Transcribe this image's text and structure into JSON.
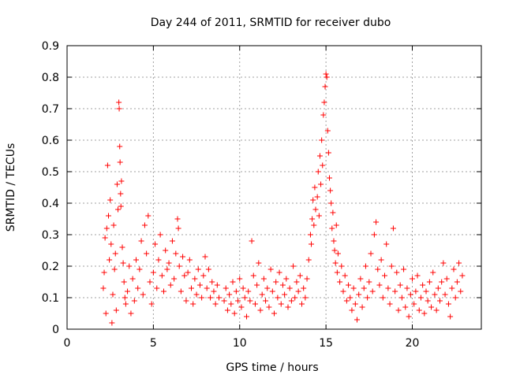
{
  "chart_data": {
    "type": "scatter",
    "title": "Day 244 of 2011, SRMTID for receiver dubo",
    "xlabel": "GPS time / hours",
    "ylabel": "SRMTID / TECUs",
    "xlim": [
      0,
      24
    ],
    "ylim": [
      0,
      0.9
    ],
    "grid": true,
    "marker": "+",
    "series_color": "#ff0000",
    "x_ticks": [
      {
        "value": 0,
        "label": "0"
      },
      {
        "value": 5,
        "label": "5"
      },
      {
        "value": 10,
        "label": "10"
      },
      {
        "value": 15,
        "label": "15"
      },
      {
        "value": 20,
        "label": "20"
      }
    ],
    "y_ticks": [
      {
        "value": 0,
        "label": "0"
      },
      {
        "value": 0.1,
        "label": "0.1"
      },
      {
        "value": 0.2,
        "label": "0.2"
      },
      {
        "value": 0.3,
        "label": "0.3"
      },
      {
        "value": 0.4,
        "label": "0.4"
      },
      {
        "value": 0.5,
        "label": "0.5"
      },
      {
        "value": 0.6,
        "label": "0.6"
      },
      {
        "value": 0.7,
        "label": "0.7"
      },
      {
        "value": 0.8,
        "label": "0.8"
      },
      {
        "value": 0.9,
        "label": "0.9"
      }
    ],
    "series": [
      {
        "name": "SRMTID",
        "points": [
          [
            2.1,
            0.13
          ],
          [
            2.15,
            0.18
          ],
          [
            2.2,
            0.29
          ],
          [
            2.25,
            0.05
          ],
          [
            2.3,
            0.32
          ],
          [
            2.35,
            0.52
          ],
          [
            2.4,
            0.36
          ],
          [
            2.45,
            0.22
          ],
          [
            2.5,
            0.41
          ],
          [
            2.55,
            0.27
          ],
          [
            2.6,
            0.02
          ],
          [
            2.65,
            0.11
          ],
          [
            2.7,
            0.33
          ],
          [
            2.75,
            0.19
          ],
          [
            2.8,
            0.24
          ],
          [
            2.85,
            0.06
          ],
          [
            2.9,
            0.46
          ],
          [
            2.95,
            0.38
          ],
          [
            3.0,
            0.72
          ],
          [
            3.02,
            0.7
          ],
          [
            3.05,
            0.58
          ],
          [
            3.07,
            0.53
          ],
          [
            3.1,
            0.43
          ],
          [
            3.12,
            0.39
          ],
          [
            3.15,
            0.47
          ],
          [
            3.2,
            0.26
          ],
          [
            3.25,
            0.21
          ],
          [
            3.3,
            0.15
          ],
          [
            3.35,
            0.1
          ],
          [
            3.4,
            0.08
          ],
          [
            3.5,
            0.12
          ],
          [
            3.6,
            0.2
          ],
          [
            3.7,
            0.05
          ],
          [
            3.8,
            0.16
          ],
          [
            3.9,
            0.09
          ],
          [
            4.0,
            0.22
          ],
          [
            4.1,
            0.13
          ],
          [
            4.2,
            0.19
          ],
          [
            4.3,
            0.28
          ],
          [
            4.4,
            0.11
          ],
          [
            4.5,
            0.33
          ],
          [
            4.6,
            0.24
          ],
          [
            4.7,
            0.36
          ],
          [
            4.8,
            0.15
          ],
          [
            4.9,
            0.08
          ],
          [
            5.0,
            0.18
          ],
          [
            5.1,
            0.27
          ],
          [
            5.2,
            0.13
          ],
          [
            5.3,
            0.22
          ],
          [
            5.4,
            0.3
          ],
          [
            5.5,
            0.17
          ],
          [
            5.6,
            0.12
          ],
          [
            5.7,
            0.25
          ],
          [
            5.8,
            0.19
          ],
          [
            5.9,
            0.21
          ],
          [
            6.0,
            0.14
          ],
          [
            6.1,
            0.28
          ],
          [
            6.2,
            0.16
          ],
          [
            6.3,
            0.24
          ],
          [
            6.4,
            0.35
          ],
          [
            6.45,
            0.32
          ],
          [
            6.5,
            0.2
          ],
          [
            6.6,
            0.12
          ],
          [
            6.7,
            0.23
          ],
          [
            6.8,
            0.17
          ],
          [
            6.9,
            0.09
          ],
          [
            7.0,
            0.18
          ],
          [
            7.1,
            0.22
          ],
          [
            7.2,
            0.13
          ],
          [
            7.3,
            0.08
          ],
          [
            7.4,
            0.16
          ],
          [
            7.5,
            0.11
          ],
          [
            7.6,
            0.19
          ],
          [
            7.7,
            0.14
          ],
          [
            7.8,
            0.1
          ],
          [
            7.9,
            0.17
          ],
          [
            8.0,
            0.23
          ],
          [
            8.1,
            0.13
          ],
          [
            8.2,
            0.19
          ],
          [
            8.3,
            0.1
          ],
          [
            8.4,
            0.15
          ],
          [
            8.5,
            0.12
          ],
          [
            8.6,
            0.08
          ],
          [
            8.7,
            0.14
          ],
          [
            8.8,
            0.1
          ],
          [
            9.1,
            0.09
          ],
          [
            9.2,
            0.13
          ],
          [
            9.3,
            0.06
          ],
          [
            9.4,
            0.11
          ],
          [
            9.5,
            0.08
          ],
          [
            9.6,
            0.15
          ],
          [
            9.7,
            0.05
          ],
          [
            9.8,
            0.12
          ],
          [
            9.9,
            0.09
          ],
          [
            10.0,
            0.16
          ],
          [
            10.1,
            0.07
          ],
          [
            10.2,
            0.13
          ],
          [
            10.3,
            0.1
          ],
          [
            10.4,
            0.04
          ],
          [
            10.5,
            0.12
          ],
          [
            10.6,
            0.09
          ],
          [
            10.7,
            0.28
          ],
          [
            10.8,
            0.17
          ],
          [
            10.9,
            0.08
          ],
          [
            11.0,
            0.14
          ],
          [
            11.1,
            0.21
          ],
          [
            11.2,
            0.06
          ],
          [
            11.3,
            0.11
          ],
          [
            11.4,
            0.16
          ],
          [
            11.5,
            0.09
          ],
          [
            11.6,
            0.13
          ],
          [
            11.7,
            0.07
          ],
          [
            11.8,
            0.19
          ],
          [
            11.9,
            0.12
          ],
          [
            12.0,
            0.05
          ],
          [
            12.1,
            0.15
          ],
          [
            12.2,
            0.1
          ],
          [
            12.3,
            0.18
          ],
          [
            12.4,
            0.08
          ],
          [
            12.5,
            0.14
          ],
          [
            12.6,
            0.11
          ],
          [
            12.7,
            0.16
          ],
          [
            12.8,
            0.07
          ],
          [
            12.9,
            0.13
          ],
          [
            13.0,
            0.09
          ],
          [
            13.1,
            0.2
          ],
          [
            13.2,
            0.1
          ],
          [
            13.3,
            0.15
          ],
          [
            13.4,
            0.12
          ],
          [
            13.5,
            0.17
          ],
          [
            13.6,
            0.08
          ],
          [
            13.7,
            0.13
          ],
          [
            13.8,
            0.1
          ],
          [
            13.9,
            0.16
          ],
          [
            14.0,
            0.22
          ],
          [
            14.1,
            0.3
          ],
          [
            14.15,
            0.27
          ],
          [
            14.2,
            0.35
          ],
          [
            14.25,
            0.41
          ],
          [
            14.3,
            0.33
          ],
          [
            14.35,
            0.45
          ],
          [
            14.4,
            0.38
          ],
          [
            14.5,
            0.42
          ],
          [
            14.55,
            0.5
          ],
          [
            14.6,
            0.36
          ],
          [
            14.65,
            0.55
          ],
          [
            14.7,
            0.46
          ],
          [
            14.75,
            0.6
          ],
          [
            14.8,
            0.52
          ],
          [
            14.85,
            0.68
          ],
          [
            14.9,
            0.72
          ],
          [
            14.95,
            0.77
          ],
          [
            15.0,
            0.81
          ],
          [
            15.05,
            0.8
          ],
          [
            15.1,
            0.63
          ],
          [
            15.15,
            0.56
          ],
          [
            15.2,
            0.48
          ],
          [
            15.25,
            0.44
          ],
          [
            15.3,
            0.4
          ],
          [
            15.35,
            0.32
          ],
          [
            15.4,
            0.37
          ],
          [
            15.45,
            0.28
          ],
          [
            15.5,
            0.25
          ],
          [
            15.55,
            0.21
          ],
          [
            15.6,
            0.33
          ],
          [
            15.65,
            0.18
          ],
          [
            15.7,
            0.24
          ],
          [
            15.8,
            0.15
          ],
          [
            15.9,
            0.2
          ],
          [
            16.0,
            0.12
          ],
          [
            16.1,
            0.17
          ],
          [
            16.2,
            0.09
          ],
          [
            16.3,
            0.14
          ],
          [
            16.4,
            0.1
          ],
          [
            16.5,
            0.06
          ],
          [
            16.6,
            0.13
          ],
          [
            16.7,
            0.08
          ],
          [
            16.8,
            0.03
          ],
          [
            16.9,
            0.11
          ],
          [
            17.0,
            0.16
          ],
          [
            17.1,
            0.07
          ],
          [
            17.2,
            0.13
          ],
          [
            17.3,
            0.2
          ],
          [
            17.4,
            0.1
          ],
          [
            17.5,
            0.15
          ],
          [
            17.6,
            0.24
          ],
          [
            17.7,
            0.12
          ],
          [
            17.8,
            0.3
          ],
          [
            17.9,
            0.34
          ],
          [
            18.0,
            0.19
          ],
          [
            18.1,
            0.14
          ],
          [
            18.2,
            0.22
          ],
          [
            18.3,
            0.1
          ],
          [
            18.4,
            0.17
          ],
          [
            18.5,
            0.27
          ],
          [
            18.6,
            0.13
          ],
          [
            18.7,
            0.08
          ],
          [
            18.8,
            0.2
          ],
          [
            18.9,
            0.32
          ],
          [
            19.0,
            0.12
          ],
          [
            19.1,
            0.18
          ],
          [
            19.2,
            0.06
          ],
          [
            19.3,
            0.14
          ],
          [
            19.4,
            0.1
          ],
          [
            19.5,
            0.19
          ],
          [
            19.6,
            0.07
          ],
          [
            19.7,
            0.13
          ],
          [
            19.8,
            0.04
          ],
          [
            19.9,
            0.11
          ],
          [
            20.0,
            0.16
          ],
          [
            20.1,
            0.08
          ],
          [
            20.2,
            0.12
          ],
          [
            20.3,
            0.17
          ],
          [
            20.4,
            0.06
          ],
          [
            20.5,
            0.1
          ],
          [
            20.6,
            0.14
          ],
          [
            20.7,
            0.05
          ],
          [
            20.8,
            0.12
          ],
          [
            20.9,
            0.09
          ],
          [
            21.0,
            0.15
          ],
          [
            21.1,
            0.07
          ],
          [
            21.2,
            0.18
          ],
          [
            21.3,
            0.11
          ],
          [
            21.4,
            0.06
          ],
          [
            21.5,
            0.13
          ],
          [
            21.6,
            0.09
          ],
          [
            21.7,
            0.15
          ],
          [
            21.8,
            0.21
          ],
          [
            21.9,
            0.11
          ],
          [
            22.0,
            0.16
          ],
          [
            22.1,
            0.08
          ],
          [
            22.2,
            0.04
          ],
          [
            22.3,
            0.13
          ],
          [
            22.4,
            0.19
          ],
          [
            22.5,
            0.1
          ],
          [
            22.6,
            0.15
          ],
          [
            22.7,
            0.21
          ],
          [
            22.8,
            0.12
          ],
          [
            22.9,
            0.17
          ]
        ]
      }
    ]
  }
}
